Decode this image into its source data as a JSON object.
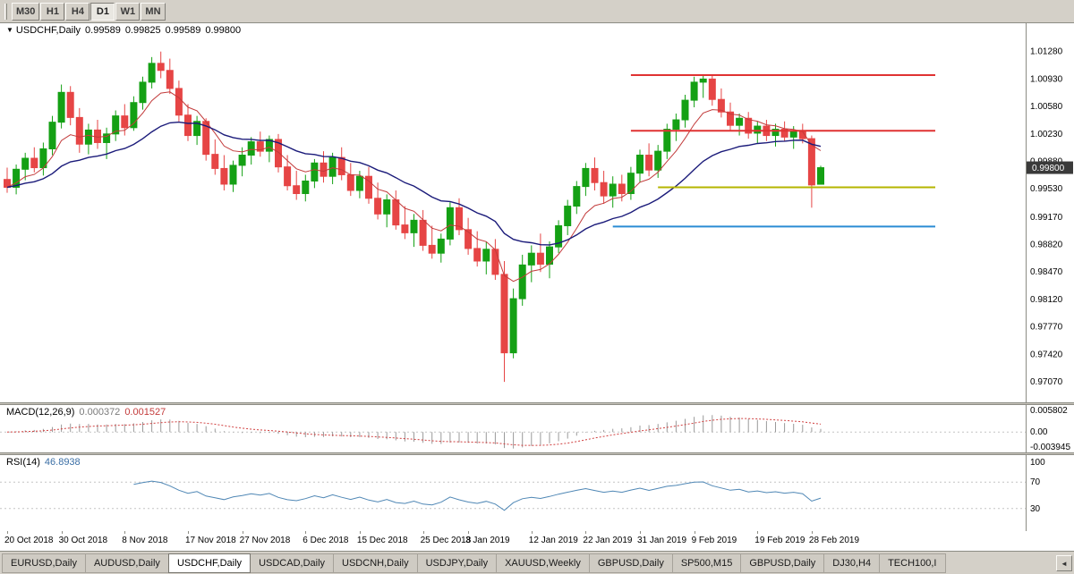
{
  "toolbar": {
    "timeframes": [
      {
        "label": "M30",
        "active": false
      },
      {
        "label": "H1",
        "active": false
      },
      {
        "label": "H4",
        "active": false
      },
      {
        "label": "D1",
        "active": true
      },
      {
        "label": "W1",
        "active": false
      },
      {
        "label": "MN",
        "active": false
      }
    ]
  },
  "chart": {
    "header": {
      "dropdown_icon": "▼",
      "symbol": "USDCHF,Daily",
      "open": "0.99589",
      "high": "0.99825",
      "low": "0.99589",
      "close": "0.99800"
    }
  },
  "chart_data": {
    "type": "candlestick",
    "title": "USDCHF,Daily",
    "y_axis": {
      "range": [
        0.969,
        1.0155
      ],
      "tick_labels": [
        "1.01280",
        "1.00930",
        "1.00580",
        "1.00230",
        "0.99880",
        "0.99530",
        "0.99170",
        "0.98820",
        "0.98470",
        "0.98120",
        "0.97770",
        "0.97420",
        "0.97070"
      ]
    },
    "x_axis": {
      "ticks": [
        {
          "label": "20 Oct 2018",
          "index": 0
        },
        {
          "label": "30 Oct 2018",
          "index": 6
        },
        {
          "label": "8 Nov 2018",
          "index": 13
        },
        {
          "label": "17 Nov 2018",
          "index": 20
        },
        {
          "label": "27 Nov 2018",
          "index": 26
        },
        {
          "label": "6 Dec 2018",
          "index": 33
        },
        {
          "label": "15 Dec 2018",
          "index": 39
        },
        {
          "label": "25 Dec 2018",
          "index": 46
        },
        {
          "label": "3 Jan 2019",
          "index": 51
        },
        {
          "label": "12 Jan 2019",
          "index": 58
        },
        {
          "label": "22 Jan 2019",
          "index": 64
        },
        {
          "label": "31 Jan 2019",
          "index": 70
        },
        {
          "label": "9 Feb 2019",
          "index": 76
        },
        {
          "label": "19 Feb 2019",
          "index": 83
        },
        {
          "label": "28 Feb 2019",
          "index": 89
        }
      ]
    },
    "ohlc": [
      [
        0.9965,
        0.998,
        0.9948,
        0.9955
      ],
      [
        0.9955,
        0.9984,
        0.9946,
        0.9978
      ],
      [
        0.9978,
        0.9999,
        0.9964,
        0.9992
      ],
      [
        0.9992,
        1.0006,
        0.9974,
        0.998
      ],
      [
        0.998,
        1.0012,
        0.997,
        1.0004
      ],
      [
        1.0004,
        1.0046,
        0.9996,
        1.0038
      ],
      [
        1.0038,
        1.0086,
        1.003,
        1.0076
      ],
      [
        1.0076,
        1.0084,
        1.0034,
        1.0044
      ],
      [
        1.0044,
        1.0056,
        0.9999,
        1.001
      ],
      [
        1.001,
        1.0036,
        0.9997,
        1.0028
      ],
      [
        1.0028,
        1.0041,
        1.0004,
        1.0012
      ],
      [
        1.0012,
        1.0031,
        0.9991,
        1.0023
      ],
      [
        1.0023,
        1.0053,
        1.0014,
        1.0046
      ],
      [
        1.0046,
        1.0061,
        1.0021,
        1.0031
      ],
      [
        1.0031,
        1.0071,
        1.0027,
        1.0063
      ],
      [
        1.0063,
        1.0096,
        1.0054,
        1.0089
      ],
      [
        1.0089,
        1.0121,
        1.0081,
        1.0113
      ],
      [
        1.0113,
        1.0128,
        1.0094,
        1.0104
      ],
      [
        1.0104,
        1.0119,
        1.0074,
        1.0081
      ],
      [
        1.0081,
        1.0091,
        1.0039,
        1.0047
      ],
      [
        1.0047,
        1.0061,
        1.0014,
        1.0021
      ],
      [
        1.0021,
        1.0046,
        1.0009,
        1.0039
      ],
      [
        1.0039,
        1.0043,
        0.9989,
        0.9997
      ],
      [
        0.9997,
        1.0016,
        0.9971,
        0.9979
      ],
      [
        0.9979,
        0.9996,
        0.9951,
        0.9959
      ],
      [
        0.9959,
        0.9989,
        0.9949,
        0.9983
      ],
      [
        0.9983,
        1.0006,
        0.9969,
        0.9996
      ],
      [
        0.9996,
        1.0019,
        0.9984,
        1.0013
      ],
      [
        1.0013,
        1.0026,
        0.9994,
        1.0001
      ],
      [
        1.0001,
        1.0021,
        0.9987,
        1.0016
      ],
      [
        1.0016,
        1.0023,
        0.9974,
        0.9981
      ],
      [
        0.9981,
        0.9996,
        0.9951,
        0.9957
      ],
      [
        0.9957,
        0.9976,
        0.9939,
        0.9947
      ],
      [
        0.9947,
        0.9971,
        0.9937,
        0.9963
      ],
      [
        0.9963,
        0.9991,
        0.9954,
        0.9986
      ],
      [
        0.9986,
        1.0001,
        0.9961,
        0.9969
      ],
      [
        0.9969,
        0.9999,
        0.9959,
        0.9993
      ],
      [
        0.9993,
        1.0006,
        0.9964,
        0.9971
      ],
      [
        0.9971,
        0.9986,
        0.9944,
        0.9951
      ],
      [
        0.9951,
        0.9976,
        0.9941,
        0.9969
      ],
      [
        0.9969,
        0.9981,
        0.9934,
        0.9941
      ],
      [
        0.9941,
        0.9961,
        0.9914,
        0.9921
      ],
      [
        0.9921,
        0.9946,
        0.9904,
        0.9939
      ],
      [
        0.9939,
        0.9951,
        0.9901,
        0.9907
      ],
      [
        0.9907,
        0.9931,
        0.9889,
        0.9897
      ],
      [
        0.9897,
        0.9921,
        0.9879,
        0.9913
      ],
      [
        0.9913,
        0.9926,
        0.9874,
        0.9881
      ],
      [
        0.9881,
        0.9906,
        0.9864,
        0.9871
      ],
      [
        0.9871,
        0.9896,
        0.9859,
        0.9889
      ],
      [
        0.9889,
        0.9936,
        0.9881,
        0.9929
      ],
      [
        0.9929,
        0.9941,
        0.9894,
        0.9901
      ],
      [
        0.9901,
        0.9916,
        0.9869,
        0.9877
      ],
      [
        0.9877,
        0.9899,
        0.9854,
        0.9861
      ],
      [
        0.9861,
        0.9886,
        0.9844,
        0.9876
      ],
      [
        0.9876,
        0.9889,
        0.9837,
        0.9844
      ],
      [
        0.9844,
        0.9861,
        0.9707,
        0.9744
      ],
      [
        0.9744,
        0.9826,
        0.9737,
        0.9813
      ],
      [
        0.9813,
        0.9869,
        0.9804,
        0.9856
      ],
      [
        0.9856,
        0.9881,
        0.9834,
        0.9871
      ],
      [
        0.9871,
        0.9896,
        0.9847,
        0.9857
      ],
      [
        0.9857,
        0.9886,
        0.9839,
        0.9879
      ],
      [
        0.9879,
        0.9913,
        0.9871,
        0.9906
      ],
      [
        0.9906,
        0.9939,
        0.9894,
        0.9931
      ],
      [
        0.9931,
        0.9963,
        0.9921,
        0.9956
      ],
      [
        0.9956,
        0.9986,
        0.9944,
        0.9979
      ],
      [
        0.9979,
        0.9993,
        0.9951,
        0.9961
      ],
      [
        0.9961,
        0.9976,
        0.9934,
        0.9944
      ],
      [
        0.9944,
        0.9969,
        0.9929,
        0.9959
      ],
      [
        0.9959,
        0.9971,
        0.9937,
        0.9947
      ],
      [
        0.9947,
        0.9981,
        0.9939,
        0.9973
      ],
      [
        0.9973,
        1.0003,
        0.9961,
        0.9996
      ],
      [
        0.9996,
        1.0011,
        0.9969,
        0.9977
      ],
      [
        0.9977,
        1.0009,
        0.9967,
        1.0001
      ],
      [
        1.0001,
        1.0036,
        0.9991,
        1.0029
      ],
      [
        1.0029,
        1.0049,
        1.0014,
        1.0041
      ],
      [
        1.0041,
        1.0073,
        1.0031,
        1.0066
      ],
      [
        1.0066,
        1.0096,
        1.0057,
        1.0089
      ],
      [
        1.0089,
        1.0099,
        1.0069,
        1.0093
      ],
      [
        1.0093,
        1.0097,
        1.0059,
        1.0067
      ],
      [
        1.0067,
        1.0081,
        1.0044,
        1.0051
      ],
      [
        1.0051,
        1.0063,
        1.0027,
        1.0034
      ],
      [
        1.0034,
        1.0049,
        1.0021,
        1.0043
      ],
      [
        1.0043,
        1.0051,
        1.0017,
        1.0024
      ],
      [
        1.0024,
        1.0039,
        1.0011,
        1.0033
      ],
      [
        1.0033,
        1.0041,
        1.0014,
        1.0021
      ],
      [
        1.0021,
        1.0036,
        1.0007,
        1.0029
      ],
      [
        1.0029,
        1.0039,
        1.0014,
        1.0019
      ],
      [
        1.0019,
        1.0033,
        1.0004,
        1.0026
      ],
      [
        1.0026,
        1.0036,
        1.0011,
        1.0017
      ],
      [
        1.0017,
        1.0021,
        0.9929,
        0.9958
      ],
      [
        0.99589,
        0.99825,
        0.99589,
        0.998
      ]
    ],
    "current_price": 0.998,
    "current_price_label": "0.99800",
    "moving_averages": [
      {
        "name": "ma-fast",
        "period": 7,
        "color": "#c23b3b",
        "width": 1
      },
      {
        "name": "ma-slow",
        "period": 21,
        "color": "#1b1b7a",
        "width": 1.4
      }
    ],
    "horizontal_lines": [
      {
        "name": "resistance-upper",
        "price": 1.0098,
        "color": "#e03232",
        "from_index": 69
      },
      {
        "name": "resistance-lower",
        "price": 1.0027,
        "color": "#e03232",
        "from_index": 69
      },
      {
        "name": "support-yellow",
        "price": 0.9955,
        "color": "#b5b500",
        "from_index": 72
      },
      {
        "name": "support-blue",
        "price": 0.9905,
        "color": "#2a8cd4",
        "from_index": 67
      }
    ],
    "colors": {
      "up": "#14a014",
      "down": "#e64545",
      "axis_text": "#000000",
      "badge_bg": "#3a3a3a",
      "badge_text": "#ffffff",
      "separator": "#8c8c84",
      "level_dotted": "#c4c4c4"
    },
    "indicators": {
      "macd": {
        "name": "MACD(12,26,9)",
        "fast": 12,
        "slow": 26,
        "signal": 9,
        "value_main": "0.000372",
        "value_signal": "0.001527",
        "axis_labels": [
          "0.005802",
          "0.00",
          "-0.003945"
        ],
        "range": [
          -0.0045,
          0.0062
        ],
        "histogram_color": "#9a9a9a",
        "signal_color": "#d04040"
      },
      "rsi": {
        "name": "RSI(14)",
        "period": 14,
        "value": "46.8938",
        "axis_labels": [
          "100",
          "70",
          "30"
        ],
        "levels": [
          70,
          30
        ],
        "range": [
          0,
          100
        ],
        "line_color": "#4f87b5"
      }
    }
  },
  "tabs": {
    "scroll_left_icon": "◄",
    "items": [
      {
        "label": "EURUSD,Daily",
        "active": false
      },
      {
        "label": "AUDUSD,Daily",
        "active": false
      },
      {
        "label": "USDCHF,Daily",
        "active": true
      },
      {
        "label": "USDCAD,Daily",
        "active": false
      },
      {
        "label": "USDCNH,Daily",
        "active": false
      },
      {
        "label": "USDJPY,Daily",
        "active": false
      },
      {
        "label": "XAUUSD,Weekly",
        "active": false
      },
      {
        "label": "GBPUSD,Daily",
        "active": false
      },
      {
        "label": "SP500,M15",
        "active": false
      },
      {
        "label": "GBPUSD,Daily",
        "active": false
      },
      {
        "label": "DJ30,H4",
        "active": false
      },
      {
        "label": "TECH100,I",
        "active": false
      }
    ]
  }
}
